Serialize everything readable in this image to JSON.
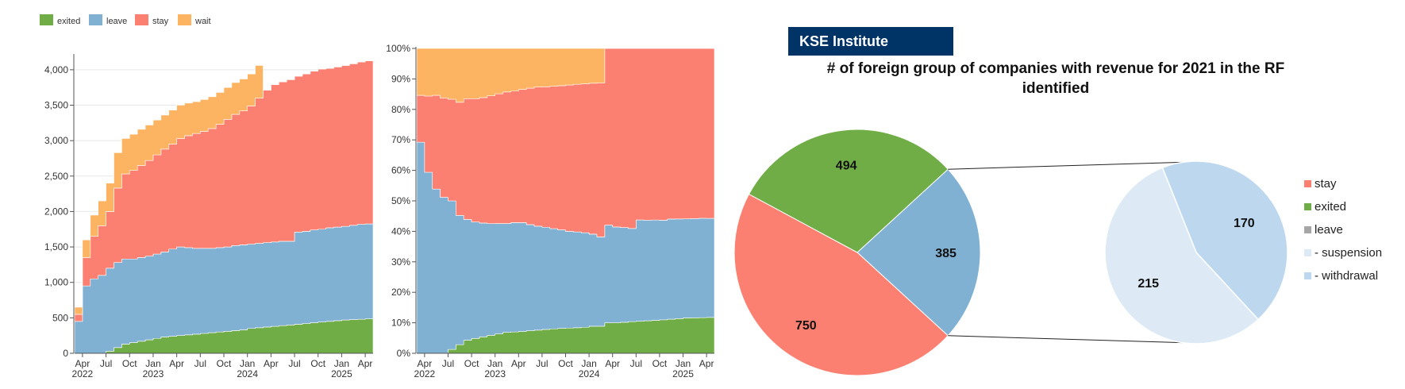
{
  "colors": {
    "exited": "#70ad47",
    "leave": "#80b1d3",
    "stay": "#fb8072",
    "wait": "#fdb462",
    "leave_grey": "#a6a6a6",
    "suspension": "#ddeaf6",
    "withdrawal": "#bdd7ee",
    "brand_bg": "#003366"
  },
  "legend": [
    "exited",
    "leave",
    "stay",
    "wait"
  ],
  "chart_data": [
    {
      "type": "area",
      "stacked": true,
      "ylim": [
        0,
        4200
      ],
      "y_ticks": [
        0,
        500,
        1000,
        1500,
        2000,
        2500,
        3000,
        3500,
        4000
      ],
      "y_tick_labels": [
        "0",
        "500",
        "1,000",
        "1,500",
        "2,000",
        "2,500",
        "3,000",
        "3,500",
        "4,000"
      ],
      "x_tick_labels": [
        "Apr",
        "Jul",
        "Oct",
        "Jan",
        "Apr",
        "Jul",
        "Oct",
        "Jan",
        "Apr",
        "Jul",
        "Oct",
        "Jan",
        "Apr"
      ],
      "x_year_labels": [
        "2022",
        "2023",
        "2024",
        "2025"
      ],
      "x": [
        "2022-03",
        "2022-04",
        "2022-05",
        "2022-06",
        "2022-07",
        "2022-08",
        "2022-09",
        "2022-10",
        "2022-11",
        "2022-12",
        "2023-01",
        "2023-02",
        "2023-03",
        "2023-04",
        "2023-05",
        "2023-06",
        "2023-07",
        "2023-08",
        "2023-09",
        "2023-10",
        "2023-11",
        "2023-12",
        "2024-01",
        "2024-02",
        "2024-03",
        "2024-04",
        "2024-05",
        "2024-06",
        "2024-07",
        "2024-08",
        "2024-09",
        "2024-10",
        "2024-11",
        "2024-12",
        "2025-01",
        "2025-02",
        "2025-03",
        "2025-04",
        "2025-05"
      ],
      "series": [
        {
          "name": "exited",
          "values": [
            0,
            0,
            0,
            0,
            30,
            80,
            130,
            150,
            170,
            190,
            210,
            230,
            240,
            250,
            260,
            270,
            280,
            290,
            300,
            310,
            320,
            330,
            350,
            360,
            370,
            380,
            390,
            400,
            410,
            420,
            430,
            440,
            450,
            460,
            470,
            475,
            480,
            485,
            490
          ]
        },
        {
          "name": "leave",
          "values": [
            450,
            950,
            1050,
            1100,
            1170,
            1200,
            1200,
            1180,
            1180,
            1180,
            1190,
            1200,
            1230,
            1250,
            1230,
            1210,
            1200,
            1190,
            1190,
            1190,
            1200,
            1200,
            1190,
            1190,
            1190,
            1190,
            1190,
            1180,
            1300,
            1300,
            1310,
            1310,
            1320,
            1320,
            1320,
            1330,
            1340,
            1340,
            1340
          ]
        },
        {
          "name": "stay",
          "values": [
            100,
            400,
            600,
            700,
            800,
            1050,
            1200,
            1250,
            1300,
            1350,
            1400,
            1450,
            1480,
            1530,
            1580,
            1620,
            1650,
            1690,
            1740,
            1800,
            1850,
            1890,
            1950,
            2050,
            2150,
            2220,
            2250,
            2280,
            2200,
            2220,
            2240,
            2260,
            2250,
            2260,
            2270,
            2280,
            2290,
            2300,
            2310
          ]
        },
        {
          "name": "wait",
          "values": [
            100,
            250,
            300,
            350,
            400,
            500,
            500,
            510,
            510,
            500,
            490,
            480,
            480,
            470,
            460,
            450,
            450,
            450,
            450,
            450,
            450,
            450,
            450,
            460,
            0,
            0,
            0,
            0,
            0,
            0,
            0,
            0,
            0,
            0,
            0,
            0,
            0,
            0,
            0
          ]
        }
      ]
    },
    {
      "type": "area",
      "stacked": true,
      "normalized": true,
      "ylim": [
        0,
        100
      ],
      "y_ticks": [
        0,
        10,
        20,
        30,
        40,
        50,
        60,
        70,
        80,
        90,
        100
      ],
      "y_tick_labels": [
        "0%",
        "10%",
        "20%",
        "30%",
        "40%",
        "50%",
        "60%",
        "70%",
        "80%",
        "90%",
        "100%"
      ],
      "x_tick_labels": [
        "Apr",
        "Jul",
        "Oct",
        "Jan",
        "Apr",
        "Jul",
        "Oct",
        "Jan",
        "Apr",
        "Jul",
        "Oct",
        "Jan",
        "Apr"
      ],
      "x_year_labels": [
        "2022",
        "2023",
        "2024",
        "2025"
      ]
    },
    {
      "type": "pie",
      "title_lines": [
        "# of foreign group of companies with revenue for 2021 in the RF",
        "identified"
      ],
      "slices": [
        {
          "name": "exited",
          "value": 494
        },
        {
          "name": "leave",
          "value": 385
        },
        {
          "name": "stay",
          "value": 750
        }
      ],
      "breakdown": {
        "parent": "leave",
        "slices": [
          {
            "name": "- withdrawal",
            "value": 170
          },
          {
            "name": "- suspension",
            "value": 215
          }
        ]
      },
      "legend": [
        "stay",
        "exited",
        "leave",
        "- suspension",
        "- withdrawal"
      ]
    }
  ],
  "brand": "KSE Institute"
}
